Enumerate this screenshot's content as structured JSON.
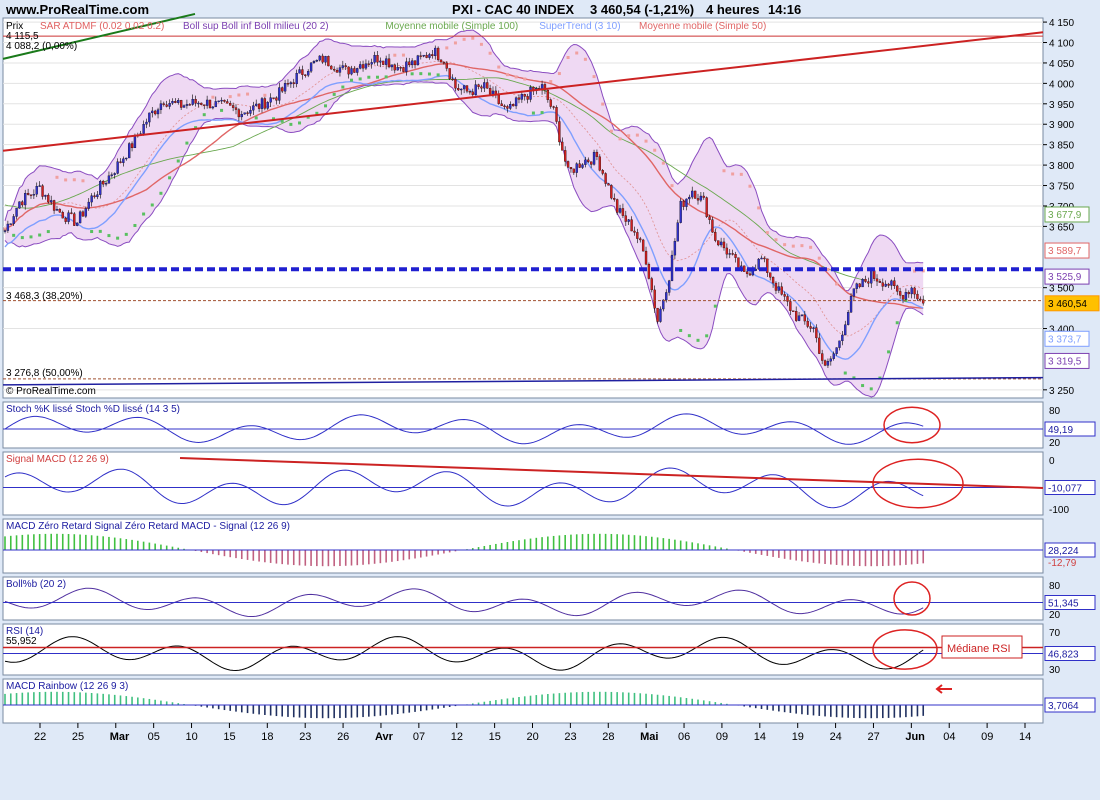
{
  "header": {
    "site": "www.ProRealTime.com",
    "instrument": "PXI - CAC 40 INDEX",
    "quote": "3 460,54 (-1,21%)",
    "timeframe": "4 heures",
    "time": "14:16",
    "watermark": "© ProRealTime.com"
  },
  "main_panel": {
    "axis_label": "Prix",
    "legend": [
      {
        "text": "SAR ATDMF (0.02 0.02 0.2)",
        "color": "#e06060"
      },
      {
        "text": "Boll sup Boll inf Boll milieu (20 2)",
        "color": "#7b3fb0"
      },
      {
        "text": "Moyenne mobile (Simple 100)",
        "color": "#6aa84f"
      },
      {
        "text": "SuperTrend (3 10)",
        "color": "#7f9fff"
      },
      {
        "text": "Moyenne mobile (Simple 50)",
        "color": "#e06666"
      }
    ],
    "fib_levels": [
      {
        "label": "4 115,5",
        "value": 4115.5
      },
      {
        "label": "4 088,2 (0,00%)",
        "value": 4088.2
      },
      {
        "label": "3 468,3 (38,20%)",
        "value": 3468.3
      },
      {
        "label": "3 276,8 (50,00%)",
        "value": 3276.8
      }
    ],
    "price_ticks": [
      "4 150",
      "4 100",
      "4 050",
      "4 000",
      "3 950",
      "3 900",
      "3 850",
      "3 800",
      "3 750",
      "3 700",
      "3 650",
      "3 500",
      "3 400",
      "3 250"
    ],
    "price_tick_values": [
      4150,
      4100,
      4050,
      4000,
      3950,
      3900,
      3850,
      3800,
      3750,
      3700,
      3650,
      3500,
      3400,
      3250
    ],
    "badges": [
      {
        "text": "3 677,9",
        "value": 3677.9,
        "color": "#6aa84f"
      },
      {
        "text": "3 589,7",
        "value": 3589.7,
        "color": "#e06666"
      },
      {
        "text": "3 525,9",
        "value": 3525.9,
        "color": "#7b3fb0"
      },
      {
        "text": "3 460,54",
        "value": 3460.54,
        "color": "#ff9900"
      },
      {
        "text": "3 373,7",
        "value": 3373.7,
        "color": "#7f9fff"
      },
      {
        "text": "3 319,5",
        "value": 3319.5,
        "color": "#7b3fb0"
      }
    ],
    "last_price": 3460.54
  },
  "panels": [
    {
      "title": "Stoch %K lissé Stoch %D lissé (14 3 5)",
      "badge": "49,19",
      "ticks": [
        "80",
        "20"
      ]
    },
    {
      "title": "Signal MACD (12 26 9)",
      "badge": "-10,077",
      "ticks": [
        "0",
        "-100"
      ]
    },
    {
      "title": "MACD Zéro Retard Signal Zéro Retard MACD - Signal (12 26 9)",
      "badge": "28,224",
      "badge2": "-12,79",
      "ticks": []
    },
    {
      "title": "Boll%b (20 2)",
      "badge": "51,345",
      "ticks": [
        "80",
        "20"
      ]
    },
    {
      "title": "RSI (14)",
      "subtitle": "55,952",
      "badge": "46,823",
      "ticks": [
        "70",
        "30"
      ],
      "annotation": "Médiane RSI"
    },
    {
      "title": "MACD Rainbow (12 26 9 3)",
      "badge": "3,7064",
      "ticks": []
    }
  ],
  "x_axis": {
    "labels": [
      "22",
      "25",
      "Mar",
      "05",
      "10",
      "15",
      "18",
      "23",
      "26",
      "Avr",
      "07",
      "12",
      "15",
      "20",
      "23",
      "28",
      "Mai",
      "06",
      "09",
      "14",
      "19",
      "24",
      "27",
      "Jun",
      "04",
      "09",
      "14"
    ],
    "bold": [
      "Mar",
      "Avr",
      "Mai",
      "Jun"
    ]
  },
  "chart_data": {
    "type": "candlestick",
    "x_range": [
      "février 22",
      "juin 14"
    ],
    "ylim": [
      3230,
      4160
    ],
    "price_path": [
      [
        0,
        3640
      ],
      [
        5,
        3710
      ],
      [
        12,
        3745
      ],
      [
        18,
        3690
      ],
      [
        22,
        3670
      ],
      [
        25,
        3660
      ],
      [
        30,
        3720
      ],
      [
        38,
        3790
      ],
      [
        44,
        3850
      ],
      [
        50,
        3920
      ],
      [
        55,
        3960
      ],
      [
        60,
        3945
      ],
      [
        68,
        3955
      ],
      [
        75,
        3945
      ],
      [
        82,
        3930
      ],
      [
        88,
        3945
      ],
      [
        95,
        3975
      ],
      [
        100,
        4010
      ],
      [
        105,
        4040
      ],
      [
        110,
        4060
      ],
      [
        118,
        4030
      ],
      [
        124,
        4050
      ],
      [
        130,
        4065
      ],
      [
        136,
        4040
      ],
      [
        142,
        4050
      ],
      [
        148,
        4080
      ],
      [
        152,
        4060
      ],
      [
        156,
        3990
      ],
      [
        160,
        3980
      ],
      [
        166,
        3990
      ],
      [
        170,
        3960
      ],
      [
        174,
        3930
      ],
      [
        180,
        3970
      ],
      [
        186,
        3990
      ],
      [
        190,
        3930
      ],
      [
        195,
        3780
      ],
      [
        200,
        3810
      ],
      [
        205,
        3820
      ],
      [
        212,
        3690
      ],
      [
        218,
        3640
      ],
      [
        222,
        3570
      ],
      [
        226,
        3420
      ],
      [
        230,
        3530
      ],
      [
        234,
        3700
      ],
      [
        238,
        3740
      ],
      [
        242,
        3710
      ],
      [
        246,
        3620
      ],
      [
        250,
        3590
      ],
      [
        256,
        3530
      ],
      [
        262,
        3570
      ],
      [
        268,
        3490
      ],
      [
        274,
        3430
      ],
      [
        280,
        3400
      ],
      [
        284,
        3300
      ],
      [
        288,
        3350
      ],
      [
        294,
        3490
      ],
      [
        300,
        3530
      ],
      [
        306,
        3510
      ],
      [
        310,
        3480
      ],
      [
        314,
        3500
      ],
      [
        318,
        3460
      ]
    ],
    "annotations": [
      "Médiane RSI"
    ]
  }
}
